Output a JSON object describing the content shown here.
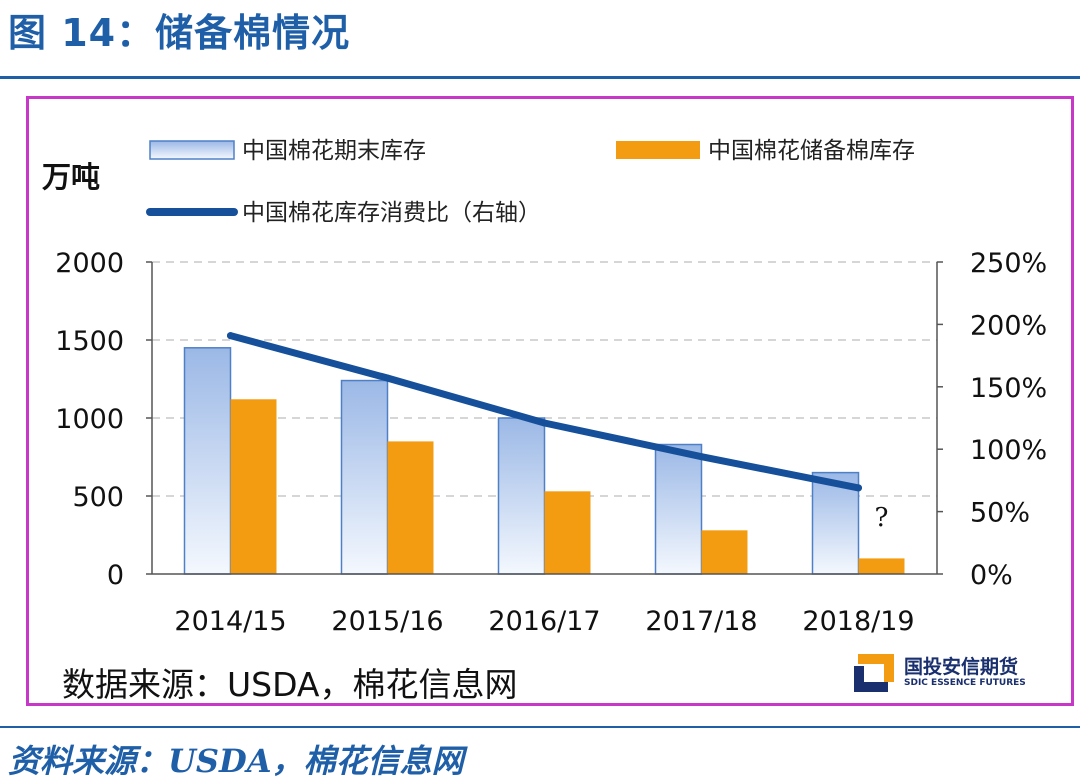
{
  "figure_title": "图 14：储备棉情况",
  "chart_data": {
    "type": "bar",
    "categories": [
      "2014/15",
      "2015/16",
      "2016/17",
      "2017/18",
      "2018/19"
    ],
    "series": [
      {
        "name": "中国棉花期末库存",
        "kind": "bar",
        "axis": "left",
        "values": [
          1450,
          1240,
          1000,
          830,
          650
        ]
      },
      {
        "name": "中国棉花储备棉库存",
        "kind": "bar",
        "axis": "left",
        "values": [
          1120,
          850,
          530,
          280,
          100
        ]
      },
      {
        "name": "中国棉花库存消费比（右轴）",
        "kind": "line",
        "axis": "right",
        "values": [
          191,
          157,
          121,
          94,
          69
        ]
      }
    ],
    "ylabel": "万吨",
    "ylim": [
      0,
      2000
    ],
    "yticks": [
      "0",
      "500",
      "1000",
      "1500",
      "2000"
    ],
    "y2lim": [
      0,
      250
    ],
    "y2ticks": [
      "0%",
      "50%",
      "100%",
      "150%",
      "200%",
      "250%"
    ],
    "annotation": "?",
    "grid": "horizontal dashed",
    "legend_position": "top",
    "colors": {
      "bar1_light": "#dbe6f7",
      "bar1_dark": "#4f80c7",
      "bar2": "#f39c12",
      "line": "#16509a",
      "grid": "#c8c8c8",
      "frame": "#c838c8"
    }
  },
  "chart_source": "数据来源：USDA，棉花信息网",
  "logo": {
    "name_cn": "国投安信期货",
    "name_en": "SDIC ESSENCE FUTURES"
  },
  "note": "资料来源：USDA，棉花信息网"
}
